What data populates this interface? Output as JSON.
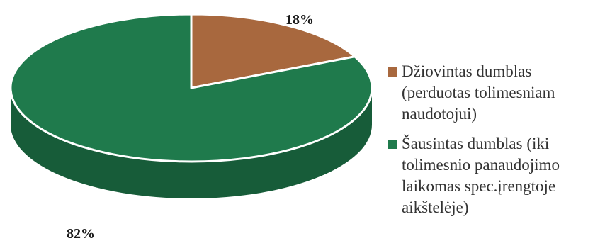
{
  "chart_data": {
    "type": "pie",
    "style": "3d",
    "slices": [
      {
        "label_lines": [
          "Džiovintas dumblas",
          "(perduotas tolimesniam",
          "naudotojui)"
        ],
        "value": 18,
        "value_label": "18%",
        "color": "#A8683E",
        "side_color": "#7A4A2A"
      },
      {
        "label_lines": [
          "Šausintas dumblas (iki",
          "tolimesnio panaudojimo",
          "laikomas spec.įrengtoje",
          "aikštelėje)"
        ],
        "value": 82,
        "value_label": "82%",
        "color": "#1F7A4C",
        "side_color": "#175C39"
      }
    ],
    "legend_position": "right"
  }
}
